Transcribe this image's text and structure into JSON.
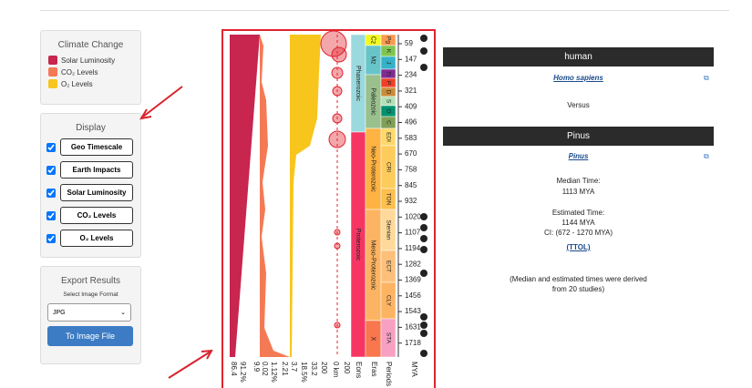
{
  "sidebar": {
    "climate": {
      "title": "Climate Change",
      "items": [
        "Solar Luminosity",
        "CO₂ Levels",
        "O₂ Levels"
      ]
    },
    "display": {
      "title": "Display",
      "buttons": [
        "Geo Timescale",
        "Earth Impacts",
        "Solar Luminosity",
        "CO₂ Levels",
        "O₂ Levels"
      ]
    },
    "export": {
      "title": "Export Results",
      "label": "Select Image Format",
      "format": "JPG",
      "button": "To Image File"
    }
  },
  "timeline": {
    "eons": [
      "Phanerozoic",
      "Proterozoic"
    ],
    "eras": [
      "Cz",
      "Mz",
      "Paleozoic",
      "Neo-Proterozoic",
      "Meso-Proterozoic",
      "X"
    ],
    "periods": [
      "Pg",
      "K",
      "J",
      "Tr",
      "P",
      "D",
      "S",
      "O",
      "C",
      "EDI",
      "CRI",
      "TON",
      "Stenian",
      "ECT",
      "CLY",
      "STA"
    ],
    "mya_ticks": [
      59,
      147,
      234,
      321,
      409,
      496,
      583,
      670,
      758,
      845,
      932,
      1020,
      1107,
      1194,
      1282,
      1369,
      1456,
      1543,
      1631,
      1718
    ],
    "axis_labels": [
      "86.4",
      "91.2%",
      "9.9",
      "0.02",
      "1.12%",
      "2.21",
      "3.7",
      "18.5%",
      "33.2",
      "200",
      "0 km",
      "200",
      "Eons",
      "Eras",
      "Periods",
      "MYA"
    ]
  },
  "comparison": {
    "taxon_a": {
      "heading": "human",
      "name": "Homo sapiens"
    },
    "versus": "Versus",
    "taxon_b": {
      "heading": "Pinus",
      "name": "Pinus"
    },
    "median_label": "Median Time:",
    "median_value": "1113 MYA",
    "estimated_label": "Estimated Time:",
    "estimated_value": "1144 MYA",
    "ci": "CI: (672 - 1270 MYA)",
    "ttol": "(TTOL)",
    "note": [
      "(Median and estimated times were derived",
      "from 20 studies)"
    ]
  }
}
